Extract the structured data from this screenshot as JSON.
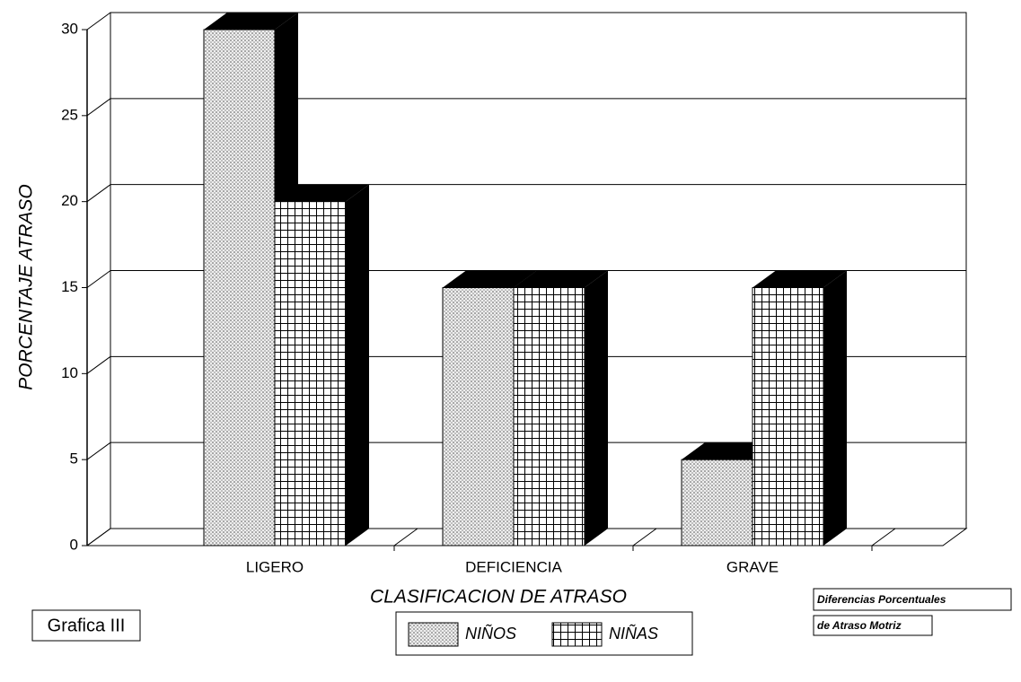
{
  "chart_data": {
    "type": "bar3d",
    "y_label": "PORCENTAJE ATRASO",
    "x_label": "CLASIFICACION DE ATRASO",
    "categories": [
      "LIGERO",
      "DEFICIENCIA",
      "GRAVE"
    ],
    "series": [
      {
        "name": "NIÑOS",
        "pattern": "dots",
        "values": [
          30,
          15,
          5
        ]
      },
      {
        "name": "NIÑAS",
        "pattern": "grid",
        "values": [
          20,
          15,
          15
        ]
      }
    ],
    "ylim": [
      0,
      30
    ],
    "yticks": [
      0,
      5,
      10,
      15,
      20,
      25,
      30
    ],
    "grid": true,
    "annotations": [
      "Grafica III",
      "Diferencias Porcentuales",
      "de Atraso Motriz"
    ]
  }
}
